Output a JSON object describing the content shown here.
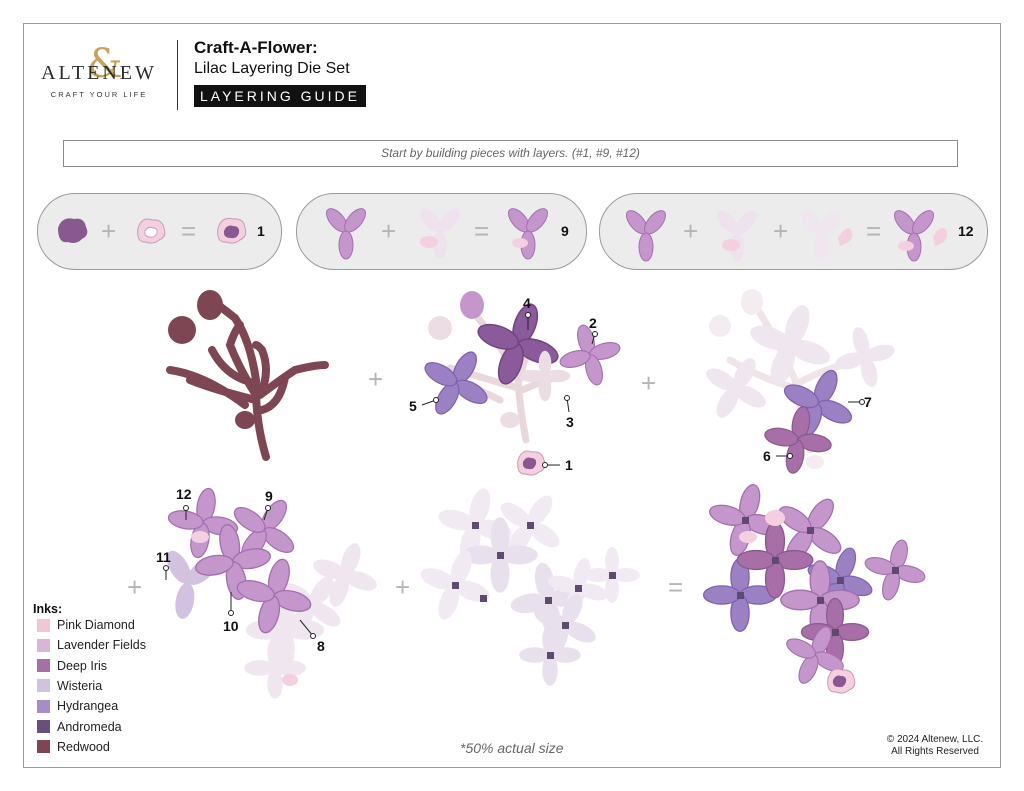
{
  "brand": {
    "name": "ALTENEW",
    "amp": "&",
    "tagline": "CRAFT YOUR LIFE",
    "gold": "#c8a45a"
  },
  "header": {
    "title": "Craft-A-Flower:",
    "subtitle": "Lilac Layering Die Set",
    "badge": "LAYERING GUIDE"
  },
  "instruction": "Start by building pieces with layers. (#1, #9, #12)",
  "pills": {
    "p1_result": "1",
    "p2_result": "9",
    "p3_result": "12"
  },
  "operators": {
    "plus": "+",
    "equals": "="
  },
  "step_labels": {
    "s2": "2",
    "s3": "3",
    "s4": "4",
    "s5": "5",
    "s1": "1",
    "s6": "6",
    "s7": "7",
    "s8": "8",
    "s9": "9",
    "s10": "10",
    "s11": "11",
    "s12": "12"
  },
  "inks": {
    "title": "Inks:",
    "items": [
      {
        "name": "Pink Diamond",
        "color": "#f1c7d8"
      },
      {
        "name": "Lavender Fields",
        "color": "#d7b6d9"
      },
      {
        "name": "Deep Iris",
        "color": "#a86ea8"
      },
      {
        "name": "Wisteria",
        "color": "#d2c2df"
      },
      {
        "name": "Hydrangea",
        "color": "#a88cc8"
      },
      {
        "name": "Andromeda",
        "color": "#6b4f7b"
      },
      {
        "name": "Redwood",
        "color": "#7e4652"
      }
    ]
  },
  "note": "*50% actual size",
  "copyright": {
    "line1": "© 2024 Altenew, LLC.",
    "line2": "All Rights Reserved"
  }
}
